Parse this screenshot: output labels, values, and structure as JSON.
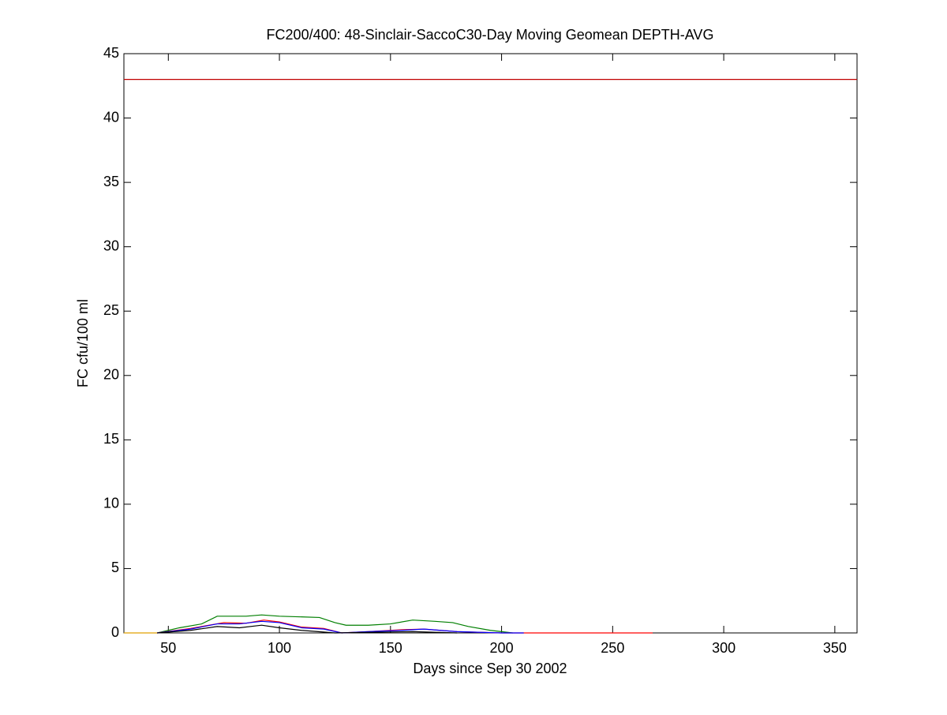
{
  "chart_data": {
    "type": "line",
    "title": "FC200/400: 48-Sinclair-SaccoC30-Day Moving Geomean DEPTH-AVG",
    "x_label": "Days since Sep 30 2002",
    "y_label": "FC cfu/100 ml",
    "xlim": [
      30,
      360
    ],
    "xticks": [
      50,
      100,
      150,
      200,
      250,
      300,
      350
    ],
    "ylim": [
      0,
      45
    ],
    "yticks": [
      0,
      5,
      10,
      15,
      20,
      25,
      30,
      35,
      40,
      45
    ],
    "grid": false,
    "series": [
      {
        "color": "#c00000",
        "x": [
          30,
          360
        ],
        "values": [
          43,
          43
        ]
      },
      {
        "color": "#e0a000",
        "x": [
          30,
          45
        ],
        "values": [
          0,
          0
        ]
      },
      {
        "color": "#007f00",
        "x": [
          45,
          55,
          65,
          72,
          85,
          92,
          100,
          118,
          125,
          130,
          140,
          150,
          160,
          170,
          178,
          185,
          195,
          200,
          205
        ],
        "values": [
          0,
          0.4,
          0.7,
          1.3,
          1.3,
          1.4,
          1.3,
          1.2,
          0.8,
          0.6,
          0.6,
          0.7,
          1.0,
          0.9,
          0.8,
          0.5,
          0.2,
          0.1,
          0
        ]
      },
      {
        "color": "#ff0000",
        "x": [
          45,
          60,
          75,
          85,
          93,
          100,
          110,
          120,
          128,
          140,
          155,
          165,
          180,
          200,
          268
        ],
        "values": [
          0,
          0.35,
          0.8,
          0.75,
          1.0,
          0.85,
          0.45,
          0.35,
          0,
          0.1,
          0.25,
          0.3,
          0.1,
          0,
          0
        ]
      },
      {
        "color": "#0000ff",
        "x": [
          45,
          60,
          72,
          82,
          92,
          100,
          110,
          120,
          128,
          140,
          155,
          165,
          180,
          200,
          210
        ],
        "values": [
          0,
          0.3,
          0.7,
          0.7,
          0.9,
          0.8,
          0.4,
          0.3,
          0,
          0.1,
          0.2,
          0.3,
          0.1,
          0,
          0
        ]
      },
      {
        "color": "#000000",
        "x": [
          45,
          60,
          72,
          82,
          92,
          100,
          110,
          125,
          140,
          160,
          180
        ],
        "values": [
          0,
          0.2,
          0.5,
          0.4,
          0.6,
          0.4,
          0.2,
          0,
          0.05,
          0.1,
          0
        ]
      }
    ]
  }
}
